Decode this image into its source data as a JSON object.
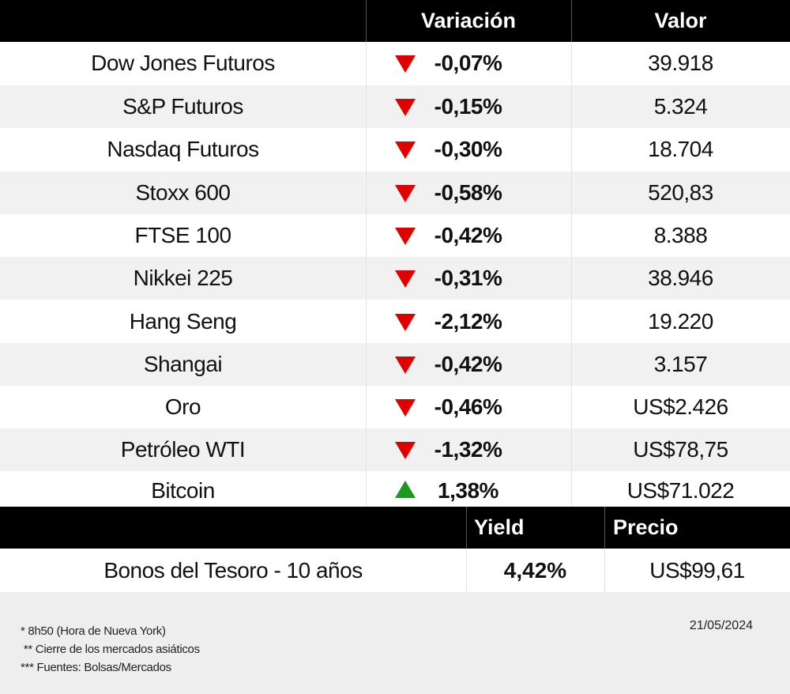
{
  "header": {
    "variation_label": "Variación",
    "value_label": "Valor"
  },
  "rows": [
    {
      "name": "Dow Jones Futuros",
      "direction": "down",
      "variation": "-0,07%",
      "value": "39.918"
    },
    {
      "name": "S&P Futuros",
      "direction": "down",
      "variation": "-0,15%",
      "value": "5.324"
    },
    {
      "name": "Nasdaq Futuros",
      "direction": "down",
      "variation": "-0,30%",
      "value": "18.704"
    },
    {
      "name": "Stoxx 600",
      "direction": "down",
      "variation": "-0,58%",
      "value": "520,83"
    },
    {
      "name": "FTSE 100",
      "direction": "down",
      "variation": "-0,42%",
      "value": "8.388"
    },
    {
      "name": "Nikkei 225",
      "direction": "down",
      "variation": "-0,31%",
      "value": "38.946"
    },
    {
      "name": "Hang Seng",
      "direction": "down",
      "variation": "-2,12%",
      "value": "19.220"
    },
    {
      "name": "Shangai",
      "direction": "down",
      "variation": "-0,42%",
      "value": "3.157"
    },
    {
      "name": "Oro",
      "direction": "down",
      "variation": "-0,46%",
      "value": "US$2.426"
    },
    {
      "name": "Petróleo WTI",
      "direction": "down",
      "variation": "-1,32%",
      "value": "US$78,75"
    },
    {
      "name": "Bitcoin",
      "direction": "up",
      "variation": "1,38%",
      "value": "US$71.022"
    }
  ],
  "bond_header": {
    "yield_label": "Yield",
    "price_label": "Precio"
  },
  "bond": {
    "name": "Bonos del Tesoro - 10 años",
    "yield": "4,42%",
    "price": "US$99,61"
  },
  "footer": {
    "note1": "* 8h50  (Hora de Nueva York)",
    "note2": " ** Cierre de los mercados asiáticos",
    "note3": "*** Fuentes: Bolsas/Mercados",
    "date": "21/05/2024"
  },
  "colors": {
    "down": "#e00000",
    "up": "#1a9a1a",
    "header_bg": "#000000",
    "alt_row_bg": "#f1f1f1",
    "footer_bg": "#eeeeee"
  },
  "icons": {
    "down": "triangle-down-icon",
    "up": "triangle-up-icon"
  }
}
